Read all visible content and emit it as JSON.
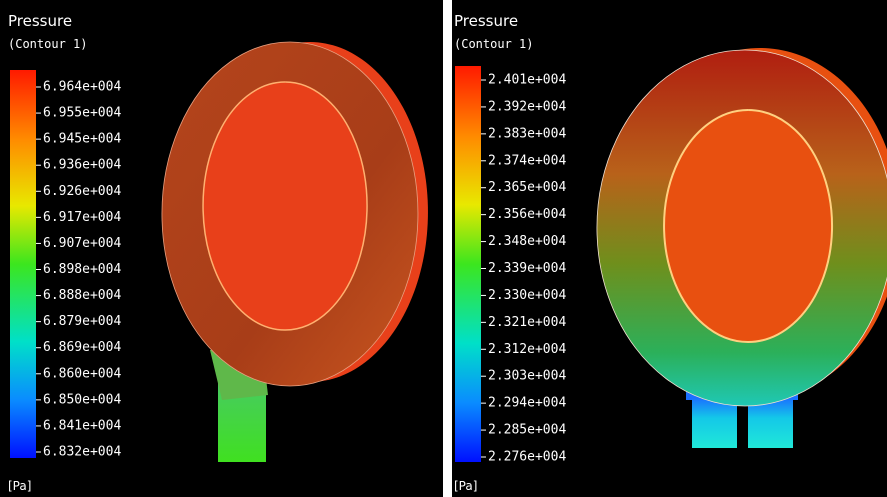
{
  "panels": [
    {
      "title": "Pressure",
      "subtitle": "(Contour  1)",
      "legend_labels": [
        "6.964e+004",
        "6.955e+004",
        "6.945e+004",
        "6.936e+004",
        "6.926e+004",
        "6.917e+004",
        "6.907e+004",
        "6.898e+004",
        "6.888e+004",
        "6.879e+004",
        "6.869e+004",
        "6.860e+004",
        "6.850e+004",
        "6.841e+004",
        "6.832e+004"
      ],
      "unit": "[Pa]"
    },
    {
      "title": "Pressure",
      "subtitle": "(Contour  1)",
      "legend_labels": [
        "2.401e+004",
        "2.392e+004",
        "2.383e+004",
        "2.374e+004",
        "2.365e+004",
        "2.356e+004",
        "2.348e+004",
        "2.339e+004",
        "2.330e+004",
        "2.321e+004",
        "2.312e+004",
        "2.303e+004",
        "2.294e+004",
        "2.285e+004",
        "2.276e+004"
      ],
      "unit": "[Pa]"
    }
  ]
}
